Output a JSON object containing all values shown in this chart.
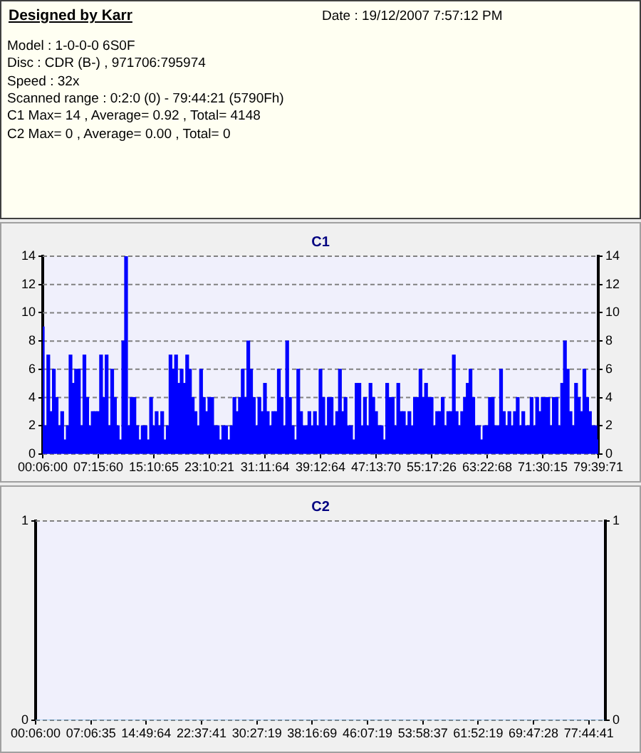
{
  "chart_data": [
    {
      "type": "other",
      "title": "Designed by Karr",
      "subtitle": "Date : 19/12/2007 7:57:12 PM",
      "annotations": [
        "Model : 1-0-0-0 6S0F",
        "Disc : CDR (B-) , 971706:795974",
        "Speed : 32x",
        "Scanned range : 0:2:0 (0) - 79:44:21 (5790Fh)",
        "C1 Max= 14 , Average= 0.92 , Total= 4148",
        "C2 Max= 0 , Average= 0.00 , Total= 0"
      ]
    },
    {
      "type": "bar",
      "title": "C1",
      "categories": [
        "00:06:00",
        null,
        null,
        null,
        null,
        null,
        null,
        null,
        null,
        null,
        null,
        null,
        null,
        null,
        null,
        null,
        null,
        null,
        null,
        null,
        "07:15:60",
        null,
        null,
        null,
        null,
        null,
        null,
        null,
        null,
        null,
        null,
        null,
        null,
        null,
        null,
        null,
        null,
        null,
        null,
        null,
        "15:10:65",
        null,
        null,
        null,
        null,
        null,
        null,
        null,
        null,
        null,
        null,
        null,
        null,
        null,
        null,
        null,
        null,
        null,
        null,
        null,
        "23:10:21",
        null,
        null,
        null,
        null,
        null,
        null,
        null,
        null,
        null,
        null,
        null,
        null,
        null,
        null,
        null,
        null,
        null,
        null,
        null,
        "31:11:64",
        null,
        null,
        null,
        null,
        null,
        null,
        null,
        null,
        null,
        null,
        null,
        null,
        null,
        null,
        null,
        null,
        null,
        null,
        null,
        "39:12:64",
        null,
        null,
        null,
        null,
        null,
        null,
        null,
        null,
        null,
        null,
        null,
        null,
        null,
        null,
        null,
        null,
        null,
        null,
        null,
        "47:13:70",
        null,
        null,
        null,
        null,
        null,
        null,
        null,
        null,
        null,
        null,
        null,
        null,
        null,
        null,
        null,
        null,
        null,
        null,
        null,
        "55:17:26",
        null,
        null,
        null,
        null,
        null,
        null,
        null,
        null,
        null,
        null,
        null,
        null,
        null,
        null,
        null,
        null,
        null,
        null,
        null,
        "63:22:68",
        null,
        null,
        null,
        null,
        null,
        null,
        null,
        null,
        null,
        null,
        null,
        null,
        null,
        null,
        null,
        null,
        null,
        null,
        null,
        "71:30:15",
        null,
        null,
        null,
        null,
        null,
        null,
        null,
        null,
        null,
        null,
        null,
        null,
        null,
        null,
        null,
        null,
        null,
        null,
        null,
        "79:39:71"
      ],
      "values": [
        9,
        2,
        7,
        3,
        6,
        4,
        2,
        3,
        1,
        2,
        7,
        5,
        6,
        6,
        2,
        7,
        4,
        2,
        3,
        3,
        3,
        7,
        4,
        7,
        2,
        6,
        4,
        2,
        1,
        8,
        14,
        2,
        4,
        4,
        2,
        1,
        2,
        2,
        1,
        4,
        2,
        3,
        2,
        3,
        1,
        2,
        7,
        6,
        7,
        5,
        6,
        5,
        7,
        6,
        4,
        3,
        2,
        6,
        4,
        3,
        4,
        4,
        2,
        2,
        1,
        2,
        2,
        1,
        2,
        4,
        3,
        4,
        6,
        4,
        8,
        6,
        4,
        2,
        4,
        3,
        5,
        3,
        2,
        3,
        3,
        6,
        4,
        2,
        8,
        4,
        2,
        1,
        6,
        3,
        2,
        2,
        3,
        2,
        3,
        2,
        6,
        4,
        2,
        4,
        4,
        2,
        3,
        6,
        3,
        4,
        2,
        2,
        1,
        5,
        5,
        2,
        4,
        2,
        5,
        4,
        3,
        2,
        2,
        1,
        5,
        4,
        4,
        2,
        5,
        3,
        3,
        2,
        3,
        2,
        4,
        4,
        6,
        4,
        5,
        4,
        4,
        2,
        3,
        3,
        4,
        2,
        3,
        3,
        7,
        3,
        2,
        3,
        4,
        5,
        6,
        4,
        2,
        2,
        1,
        2,
        2,
        4,
        4,
        2,
        2,
        6,
        3,
        2,
        3,
        2,
        3,
        4,
        2,
        3,
        2,
        2,
        4,
        2,
        4,
        3,
        4,
        4,
        4,
        2,
        4,
        4,
        2,
        5,
        8,
        6,
        3,
        2,
        5,
        4,
        3,
        6,
        4,
        3,
        2,
        2,
        1
      ],
      "color": "#0000ff",
      "ylim": [
        0,
        14
      ],
      "yticks": [
        0,
        2,
        4,
        6,
        8,
        10,
        12,
        14
      ],
      "y2lim": [
        0,
        14
      ],
      "y2ticks": [
        0,
        2,
        4,
        6,
        8,
        10,
        12,
        14
      ],
      "grid": "y"
    },
    {
      "type": "bar",
      "title": "C2",
      "categories": [
        "00:06:00",
        null,
        null,
        null,
        null,
        null,
        null,
        null,
        null,
        null,
        "07:06:35",
        null,
        null,
        null,
        null,
        null,
        null,
        null,
        null,
        null,
        "14:49:64",
        null,
        null,
        null,
        null,
        null,
        null,
        null,
        null,
        null,
        "22:37:41",
        null,
        null,
        null,
        null,
        null,
        null,
        null,
        null,
        null,
        "30:27:19",
        null,
        null,
        null,
        null,
        null,
        null,
        null,
        null,
        null,
        "38:16:69",
        null,
        null,
        null,
        null,
        null,
        null,
        null,
        null,
        null,
        "46:07:19",
        null,
        null,
        null,
        null,
        null,
        null,
        null,
        null,
        null,
        "53:58:37",
        null,
        null,
        null,
        null,
        null,
        null,
        null,
        null,
        null,
        "61:52:19",
        null,
        null,
        null,
        null,
        null,
        null,
        null,
        null,
        null,
        "69:47:28",
        null,
        null,
        null,
        null,
        null,
        null,
        null,
        null,
        null,
        "77:44:41",
        null,
        null,
        null
      ],
      "values": [
        0,
        0,
        0,
        0,
        0,
        0,
        0,
        0,
        0,
        0,
        0,
        0,
        0,
        0,
        0,
        0,
        0,
        0,
        0,
        0,
        0,
        0,
        0,
        0,
        0,
        0,
        0,
        0,
        0,
        0,
        0,
        0,
        0,
        0,
        0,
        0,
        0,
        0,
        0,
        0,
        0,
        0,
        0,
        0,
        0,
        0,
        0,
        0,
        0,
        0,
        0,
        0,
        0,
        0,
        0,
        0,
        0,
        0,
        0,
        0,
        0,
        0,
        0,
        0,
        0,
        0,
        0,
        0,
        0,
        0,
        0,
        0,
        0,
        0,
        0,
        0,
        0,
        0,
        0,
        0,
        0,
        0,
        0,
        0,
        0,
        0,
        0,
        0,
        0,
        0,
        0,
        0,
        0,
        0,
        0,
        0,
        0,
        0,
        0,
        0,
        0,
        0,
        0,
        0
      ],
      "ylim": [
        0,
        1
      ],
      "yticks": [
        0,
        1
      ],
      "y2lim": [
        0,
        1
      ],
      "y2ticks": [
        0,
        1
      ],
      "grid": "y"
    }
  ]
}
